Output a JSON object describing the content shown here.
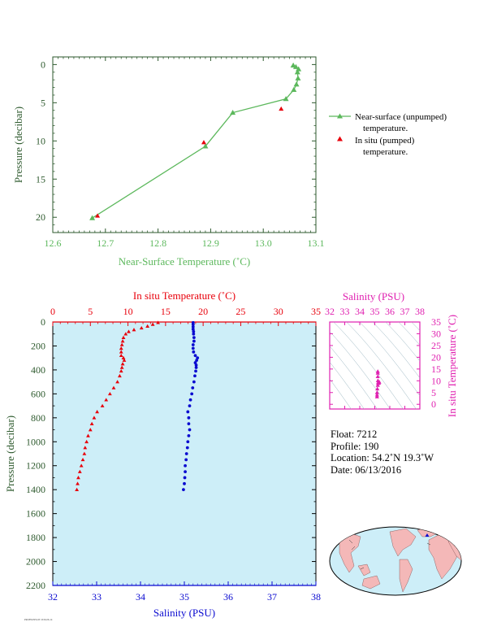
{
  "chart_data": [
    {
      "type": "line",
      "xlabel": "Near-Surface Temperature (˚C)",
      "ylabel": "Pressure (decibar)",
      "xlim": [
        12.6,
        13.1
      ],
      "ylim": [
        22,
        -1
      ],
      "xticks": [
        "12.6",
        "12.7",
        "12.8",
        "12.9",
        "13.0",
        "13.1"
      ],
      "yticks": [
        "0",
        "5",
        "10",
        "15",
        "20"
      ],
      "legend": [
        "Near-surface (unpumped)",
        "temperature.",
        "In situ (pumped)",
        "temperature."
      ],
      "series": [
        {
          "name": "Near-surface (unpumped) temperature.",
          "color": "#5cb85c",
          "points": [
            [
              13.057,
              0.1
            ],
            [
              13.062,
              0.3
            ],
            [
              13.067,
              0.6
            ],
            [
              13.065,
              1.0
            ],
            [
              13.066,
              1.8
            ],
            [
              13.063,
              2.6
            ],
            [
              13.058,
              3.3
            ],
            [
              13.043,
              4.5
            ],
            [
              12.942,
              6.3
            ],
            [
              12.89,
              10.7
            ],
            [
              12.675,
              20.1
            ]
          ]
        },
        {
          "name": "In situ (pumped) temperature.",
          "color": "#e8000b",
          "points": [
            [
              13.034,
              5.8
            ],
            [
              12.887,
              10.2
            ],
            [
              12.685,
              19.8
            ]
          ]
        }
      ]
    },
    {
      "type": "scatter",
      "ylabel": "Pressure (decibar)",
      "ylim": [
        2200,
        0
      ],
      "yticks": [
        "0",
        "200",
        "400",
        "600",
        "800",
        "1000",
        "1200",
        "1400",
        "1600",
        "1800",
        "2000",
        "2200"
      ],
      "temperature_axis": {
        "label": "In situ Temperature (˚C)",
        "ticks": [
          "0",
          "5",
          "10",
          "15",
          "20",
          "25",
          "30",
          "35"
        ],
        "range": [
          0,
          35
        ],
        "color": "#e8000b"
      },
      "salinity_axis": {
        "label": "Salinity (PSU)",
        "ticks": [
          "32",
          "33",
          "34",
          "35",
          "36",
          "37",
          "38"
        ],
        "range": [
          32,
          38
        ],
        "color": "#0a0ad0"
      },
      "background": "#cdeef8",
      "temperature": [
        [
          14.0,
          5
        ],
        [
          13.3,
          20
        ],
        [
          12.6,
          35
        ],
        [
          11.8,
          50
        ],
        [
          10.8,
          65
        ],
        [
          10.1,
          80
        ],
        [
          9.7,
          100
        ],
        [
          9.4,
          130
        ],
        [
          9.3,
          160
        ],
        [
          9.2,
          190
        ],
        [
          9.1,
          220
        ],
        [
          9.1,
          250
        ],
        [
          9.1,
          280
        ],
        [
          9.4,
          300
        ],
        [
          9.5,
          320
        ],
        [
          9.3,
          350
        ],
        [
          9.2,
          380
        ],
        [
          9.1,
          410
        ],
        [
          8.9,
          450
        ],
        [
          8.6,
          500
        ],
        [
          8.1,
          550
        ],
        [
          7.6,
          600
        ],
        [
          7.1,
          650
        ],
        [
          6.6,
          700
        ],
        [
          5.9,
          750
        ],
        [
          5.5,
          800
        ],
        [
          5.2,
          850
        ],
        [
          5.0,
          900
        ],
        [
          4.7,
          950
        ],
        [
          4.5,
          1000
        ],
        [
          4.3,
          1050
        ],
        [
          4.2,
          1100
        ],
        [
          4.0,
          1150
        ],
        [
          3.8,
          1200
        ],
        [
          3.6,
          1250
        ],
        [
          3.4,
          1300
        ],
        [
          3.3,
          1350
        ],
        [
          3.2,
          1400
        ]
      ],
      "salinity": [
        [
          35.2,
          5
        ],
        [
          35.2,
          20
        ],
        [
          35.2,
          40
        ],
        [
          35.2,
          60
        ],
        [
          35.21,
          80
        ],
        [
          35.21,
          100
        ],
        [
          35.22,
          130
        ],
        [
          35.22,
          160
        ],
        [
          35.2,
          190
        ],
        [
          35.2,
          220
        ],
        [
          35.21,
          250
        ],
        [
          35.25,
          280
        ],
        [
          35.3,
          300
        ],
        [
          35.28,
          320
        ],
        [
          35.25,
          340
        ],
        [
          35.27,
          360
        ],
        [
          35.27,
          380
        ],
        [
          35.26,
          410
        ],
        [
          35.24,
          450
        ],
        [
          35.22,
          500
        ],
        [
          35.19,
          550
        ],
        [
          35.17,
          600
        ],
        [
          35.14,
          650
        ],
        [
          35.12,
          700
        ],
        [
          35.08,
          750
        ],
        [
          35.1,
          800
        ],
        [
          35.1,
          850
        ],
        [
          35.12,
          900
        ],
        [
          35.1,
          950
        ],
        [
          35.08,
          1000
        ],
        [
          35.07,
          1050
        ],
        [
          35.05,
          1100
        ],
        [
          35.04,
          1150
        ],
        [
          35.02,
          1200
        ],
        [
          35.02,
          1250
        ],
        [
          35.01,
          1300
        ],
        [
          35.0,
          1350
        ],
        [
          34.98,
          1400
        ]
      ]
    },
    {
      "type": "scatter",
      "xlabel": "Salinity (PSU)",
      "ylabel": "In situ Temperature (˚C)",
      "xlim": [
        32,
        38
      ],
      "ylim": [
        -2,
        35
      ],
      "xticks": [
        "32",
        "33",
        "34",
        "35",
        "36",
        "37",
        "38"
      ],
      "yticks": [
        "0",
        "5",
        "10",
        "15",
        "20",
        "25",
        "30",
        "35"
      ],
      "color": "#e020b0",
      "points": [
        [
          35.15,
          3.2
        ],
        [
          35.15,
          4.0
        ],
        [
          35.15,
          5.0
        ],
        [
          35.17,
          6.6
        ],
        [
          35.2,
          8.1
        ],
        [
          35.24,
          8.9
        ],
        [
          35.27,
          9.1
        ],
        [
          35.3,
          9.5
        ],
        [
          35.25,
          9.3
        ],
        [
          35.22,
          9.2
        ],
        [
          35.21,
          10.1
        ],
        [
          35.2,
          11.8
        ],
        [
          35.2,
          13.3
        ],
        [
          35.2,
          14.0
        ]
      ]
    }
  ],
  "info": {
    "float": "Float:  7212",
    "profile": "Profile:  190",
    "location": "Location:  54.2˚N  19.3˚W",
    "date": "Date:  06/13/2016"
  },
  "footer": "PROFILEPLOT 2016-06-14",
  "map": {
    "float_position": "54.2˚N 19.3˚W"
  }
}
